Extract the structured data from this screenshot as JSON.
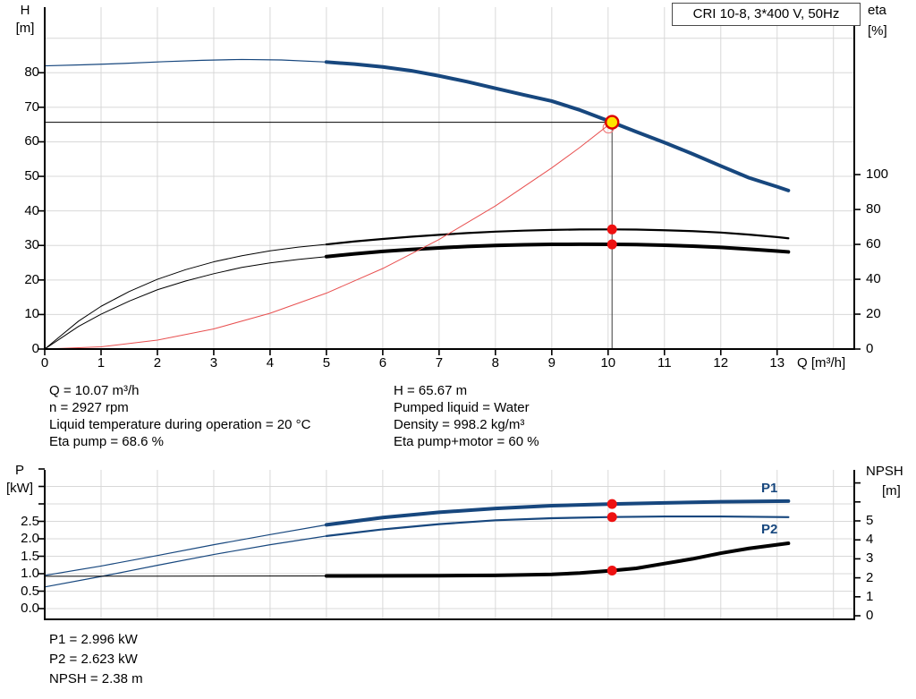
{
  "header": {
    "title": "CRI 10-8, 3*400 V, 50Hz"
  },
  "colors": {
    "curve_blue": "#17477E",
    "curve_black": "#000000",
    "curve_red": "#E85050",
    "dot_red": "#EE1111",
    "marker_yellow": "#FFE400",
    "marker_ring_red": "#DD0000",
    "grid": "#D8D8D8",
    "axis": "#000000",
    "label_blue": "#17477E"
  },
  "top_info": {
    "left": [
      "Q = 10.07 m³/h",
      "n = 2927 rpm",
      "Liquid temperature during operation = 20 °C",
      "Eta pump = 68.6 %"
    ],
    "right": [
      "H = 65.67 m",
      "Pumped liquid = Water",
      "Density = 998.2 kg/m³",
      "Eta pump+motor = 60 %"
    ]
  },
  "bottom_info": [
    "P1 = 2.996 kW",
    "P2 = 2.623 kW",
    "NPSH = 2.38 m"
  ],
  "chart_data": [
    {
      "type": "line",
      "title": "CRI 10-8, 3*400 V, 50Hz",
      "x_axis": {
        "label": "Q [m³/h]",
        "min": 0,
        "max": 14.37,
        "ticks": [
          {
            "v": 0,
            "t": "0"
          },
          {
            "v": 1,
            "t": "1"
          },
          {
            "v": 2,
            "t": "2"
          },
          {
            "v": 3,
            "t": "3"
          },
          {
            "v": 4,
            "t": "4"
          },
          {
            "v": 5,
            "t": "5"
          },
          {
            "v": 6,
            "t": "6"
          },
          {
            "v": 7,
            "t": "7"
          },
          {
            "v": 8,
            "t": "8"
          },
          {
            "v": 9,
            "t": "9"
          },
          {
            "v": 10,
            "t": "10"
          },
          {
            "v": 11,
            "t": "11"
          },
          {
            "v": 12,
            "t": "12"
          },
          {
            "v": 13,
            "t": "13"
          }
        ]
      },
      "y_left": {
        "name": "H",
        "unit": "[m]",
        "min": 0,
        "max": 99,
        "ticks": [
          {
            "v": 0,
            "t": "0"
          },
          {
            "v": 10,
            "t": "10"
          },
          {
            "v": 20,
            "t": "20"
          },
          {
            "v": 30,
            "t": "30"
          },
          {
            "v": 40,
            "t": "40"
          },
          {
            "v": 50,
            "t": "50"
          },
          {
            "v": 60,
            "t": "60"
          },
          {
            "v": 70,
            "t": "70"
          },
          {
            "v": 80,
            "t": "80"
          }
        ]
      },
      "y_right": {
        "name": "eta",
        "unit": "[%]",
        "min": 0,
        "max": 196,
        "ticks": [
          {
            "v": 0,
            "t": "0"
          },
          {
            "v": 20,
            "t": "20"
          },
          {
            "v": 40,
            "t": "40"
          },
          {
            "v": 60,
            "t": "60"
          },
          {
            "v": 80,
            "t": "80"
          },
          {
            "v": 100,
            "t": "100"
          }
        ]
      },
      "series": [
        {
          "name": "head-curve-low-flow",
          "axis": "H",
          "color": "blue",
          "width": 1.2,
          "points": [
            [
              0,
              82.0
            ],
            [
              0.7,
              82.3
            ],
            [
              1.4,
              82.7
            ],
            [
              2.1,
              83.2
            ],
            [
              2.8,
              83.6
            ],
            [
              3.5,
              83.85
            ],
            [
              4.2,
              83.7
            ],
            [
              5,
              83.1
            ]
          ]
        },
        {
          "name": "head-curve",
          "axis": "H",
          "color": "blue",
          "width": 4,
          "points": [
            [
              5,
              83.1
            ],
            [
              5.5,
              82.5
            ],
            [
              6,
              81.7
            ],
            [
              6.5,
              80.6
            ],
            [
              7,
              79.1
            ],
            [
              7.5,
              77.4
            ],
            [
              8,
              75.5
            ],
            [
              8.5,
              73.6
            ],
            [
              9,
              71.8
            ],
            [
              9.5,
              69.2
            ],
            [
              10.07,
              65.67
            ],
            [
              10.5,
              62.9
            ],
            [
              11,
              59.8
            ],
            [
              11.5,
              56.5
            ],
            [
              12,
              53.0
            ],
            [
              12.5,
              49.6
            ],
            [
              13,
              47.0
            ],
            [
              13.2,
              45.9
            ]
          ]
        },
        {
          "name": "eta-pump-curve-low-flow",
          "axis": "ETA",
          "color": "black",
          "width": 1,
          "points": [
            [
              0,
              0
            ],
            [
              0.3,
              8
            ],
            [
              0.6,
              16
            ],
            [
              1,
              24.5
            ],
            [
              1.5,
              33
            ],
            [
              2,
              40
            ],
            [
              2.5,
              45.5
            ],
            [
              3,
              50
            ],
            [
              3.5,
              53.5
            ],
            [
              4,
              56.3
            ],
            [
              4.5,
              58.4
            ],
            [
              5,
              60
            ]
          ]
        },
        {
          "name": "eta-pump-curve",
          "axis": "ETA",
          "color": "black",
          "width": 2.2,
          "points": [
            [
              5,
              60
            ],
            [
              5.5,
              61.7
            ],
            [
              6,
              63.1
            ],
            [
              6.5,
              64.4
            ],
            [
              7,
              65.5
            ],
            [
              7.5,
              66.5
            ],
            [
              8,
              67.3
            ],
            [
              8.5,
              67.9
            ],
            [
              9,
              68.3
            ],
            [
              9.5,
              68.55
            ],
            [
              10.07,
              68.6
            ],
            [
              10.5,
              68.5
            ],
            [
              11,
              68.1
            ],
            [
              11.5,
              67.6
            ],
            [
              12,
              66.8
            ],
            [
              12.5,
              65.6
            ],
            [
              13,
              64.2
            ],
            [
              13.2,
              63.5
            ]
          ]
        },
        {
          "name": "eta-pump-motor-curve-low-flow",
          "axis": "ETA",
          "color": "black",
          "width": 1,
          "points": [
            [
              0,
              0
            ],
            [
              0.3,
              6.5
            ],
            [
              0.6,
              13
            ],
            [
              1,
              20
            ],
            [
              1.5,
              27.5
            ],
            [
              2,
              34
            ],
            [
              2.5,
              39
            ],
            [
              3,
              43.2
            ],
            [
              3.5,
              46.8
            ],
            [
              4,
              49.4
            ],
            [
              4.5,
              51.4
            ],
            [
              5,
              53
            ]
          ]
        },
        {
          "name": "eta-pump-motor-curve",
          "axis": "ETA",
          "color": "black",
          "width": 4,
          "points": [
            [
              5,
              53
            ],
            [
              5.5,
              54.6
            ],
            [
              6,
              56
            ],
            [
              6.5,
              57.1
            ],
            [
              7,
              58
            ],
            [
              7.5,
              58.8
            ],
            [
              8,
              59.4
            ],
            [
              8.5,
              59.8
            ],
            [
              9,
              60
            ],
            [
              9.5,
              60.1
            ],
            [
              10.07,
              60
            ],
            [
              10.5,
              59.9
            ],
            [
              11,
              59.5
            ],
            [
              11.5,
              59
            ],
            [
              12,
              58.3
            ],
            [
              12.5,
              57.3
            ],
            [
              13,
              56.2
            ],
            [
              13.2,
              55.7
            ]
          ]
        },
        {
          "name": "system-curve",
          "axis": "H",
          "color": "red",
          "width": 1,
          "points": [
            [
              0,
              0
            ],
            [
              1,
              0.65
            ],
            [
              2,
              2.59
            ],
            [
              3,
              5.83
            ],
            [
              4,
              10.36
            ],
            [
              5,
              16.19
            ],
            [
              6,
              23.32
            ],
            [
              7,
              31.74
            ],
            [
              8,
              41.45
            ],
            [
              9,
              52.46
            ],
            [
              9.5,
              58.4
            ],
            [
              10.07,
              65.67
            ]
          ]
        }
      ],
      "duty_point": {
        "q": 10.07,
        "h": 65.67
      },
      "crosshair": {
        "q": 10.07,
        "h": 65.67
      },
      "operating_dots": [
        {
          "q": 10.07,
          "axis": "ETA",
          "v": 68.6
        },
        {
          "q": 10.07,
          "axis": "ETA",
          "v": 60
        }
      ]
    },
    {
      "type": "line",
      "x_axis": {
        "min": 0,
        "max": 14.37
      },
      "y_left": {
        "name": "P",
        "unit": "[kW]",
        "min": 0,
        "max": 4.0,
        "ticks": [
          {
            "v": 0,
            "t": "0.0"
          },
          {
            "v": 0.5,
            "t": "0.5"
          },
          {
            "v": 1,
            "t": "1.0"
          },
          {
            "v": 1.5,
            "t": "1.5"
          },
          {
            "v": 2,
            "t": "2.0"
          },
          {
            "v": 2.5,
            "t": "2.5"
          }
        ],
        "minor": [
          3.0,
          3.5,
          4.0
        ]
      },
      "y_right": {
        "name": "NPSH",
        "unit": "[m]",
        "min": 0,
        "max": 7.7,
        "ticks": [
          {
            "v": 0,
            "t": "0"
          },
          {
            "v": 1,
            "t": "1"
          },
          {
            "v": 2,
            "t": "2"
          },
          {
            "v": 3,
            "t": "3"
          },
          {
            "v": 4,
            "t": "4"
          },
          {
            "v": 5,
            "t": "5"
          }
        ],
        "minor": [
          6,
          7
        ]
      },
      "series": [
        {
          "name": "p1-curve-low-flow",
          "axis": "P",
          "color": "blue",
          "width": 1.2,
          "points": [
            [
              0,
              0.95
            ],
            [
              1,
              1.22
            ],
            [
              2,
              1.52
            ],
            [
              3,
              1.83
            ],
            [
              4,
              2.12
            ],
            [
              5,
              2.4
            ]
          ]
        },
        {
          "name": "p1-curve",
          "axis": "P",
          "color": "blue",
          "width": 4,
          "points": [
            [
              5,
              2.4
            ],
            [
              6,
              2.61
            ],
            [
              7,
              2.76
            ],
            [
              8,
              2.87
            ],
            [
              9,
              2.95
            ],
            [
              10.07,
              2.996
            ],
            [
              11,
              3.03
            ],
            [
              12,
              3.06
            ],
            [
              13.2,
              3.08
            ]
          ]
        },
        {
          "name": "p2-curve-low-flow",
          "axis": "P",
          "color": "blue",
          "width": 1.2,
          "points": [
            [
              0,
              0.62
            ],
            [
              1,
              0.92
            ],
            [
              2,
              1.24
            ],
            [
              3,
              1.55
            ],
            [
              4,
              1.83
            ],
            [
              5,
              2.08
            ]
          ]
        },
        {
          "name": "p2-curve",
          "axis": "P",
          "color": "blue",
          "width": 2.2,
          "points": [
            [
              5,
              2.08
            ],
            [
              6,
              2.27
            ],
            [
              7,
              2.42
            ],
            [
              8,
              2.53
            ],
            [
              9,
              2.59
            ],
            [
              10.07,
              2.623
            ],
            [
              11,
              2.64
            ],
            [
              12,
              2.64
            ],
            [
              13.2,
              2.62
            ]
          ]
        },
        {
          "name": "npsh-curve-low-flow",
          "axis": "NPSH",
          "color": "black",
          "width": 1,
          "points": [
            [
              0,
              2.08
            ],
            [
              2,
              2.09
            ],
            [
              5,
              2.1
            ]
          ]
        },
        {
          "name": "npsh-curve",
          "axis": "NPSH",
          "color": "black",
          "width": 4,
          "points": [
            [
              5,
              2.1
            ],
            [
              7,
              2.11
            ],
            [
              8,
              2.13
            ],
            [
              9,
              2.18
            ],
            [
              9.5,
              2.25
            ],
            [
              10.07,
              2.38
            ],
            [
              10.5,
              2.5
            ],
            [
              11,
              2.75
            ],
            [
              11.5,
              3.0
            ],
            [
              12,
              3.3
            ],
            [
              12.5,
              3.55
            ],
            [
              13.2,
              3.82
            ]
          ]
        }
      ],
      "series_labels": {
        "p1": "P1",
        "p2": "P2"
      },
      "operating_dots": [
        {
          "q": 10.07,
          "axis": "P",
          "v": 2.996
        },
        {
          "q": 10.07,
          "axis": "P",
          "v": 2.623
        },
        {
          "q": 10.07,
          "axis": "NPSH",
          "v": 2.38
        }
      ]
    }
  ]
}
